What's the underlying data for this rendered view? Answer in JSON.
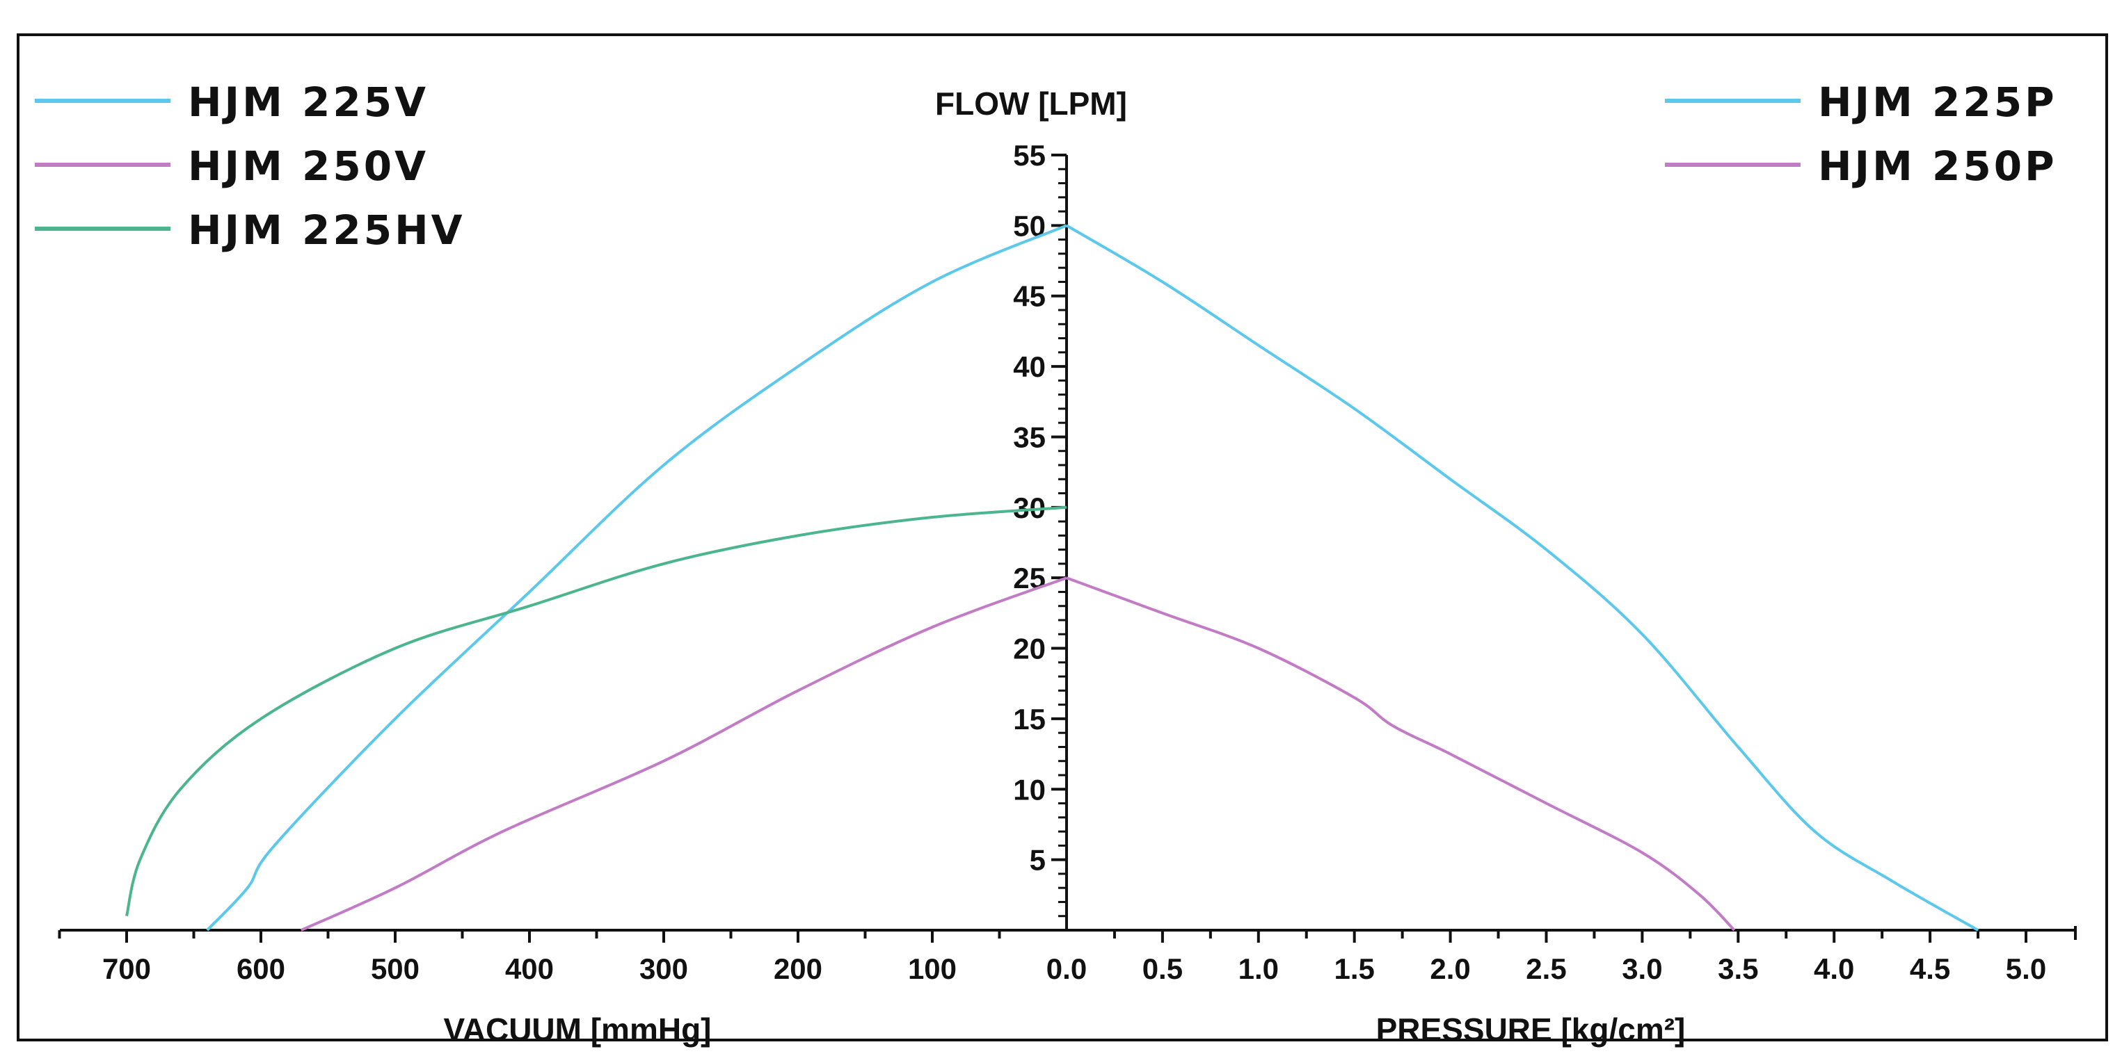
{
  "chart_data": {
    "type": "line",
    "y_axis_title": "FLOW [LPM]",
    "left_x_axis_title": "VACUUM [mmHg]",
    "right_x_axis_title": "PRESSURE   [kg/cm²]",
    "ylim": [
      0,
      55
    ],
    "left_xlim": [
      750,
      0
    ],
    "right_xlim": [
      0,
      5.2
    ],
    "y_ticks": [
      "5",
      "10",
      "15",
      "20",
      "25",
      "30",
      "35",
      "40",
      "45",
      "50",
      "55"
    ],
    "left_x_ticks": [
      "700",
      "600",
      "500",
      "400",
      "300",
      "200",
      "100"
    ],
    "right_x_ticks": [
      "0.0",
      "0.5",
      "1.0",
      "1.5",
      "2.0",
      "2.5",
      "3.0",
      "3.5",
      "4.0",
      "4.5",
      "5.0"
    ],
    "left_legend": [
      {
        "name": "HJM 225V",
        "color": "#5bc8ec"
      },
      {
        "name": "HJM 250V",
        "color": "#c27cc6"
      },
      {
        "name": "HJM 225HV",
        "color": "#4bb58e"
      }
    ],
    "right_legend": [
      {
        "name": "HJM 225P",
        "color": "#5bc8ec"
      },
      {
        "name": "HJM 250P",
        "color": "#c27cc6"
      }
    ],
    "vacuum_series": [
      {
        "name": "HJM 225V",
        "color": "#5bc8ec",
        "points": [
          [
            640,
            0
          ],
          [
            610,
            3
          ],
          [
            590,
            6
          ],
          [
            500,
            15
          ],
          [
            400,
            24
          ],
          [
            300,
            33
          ],
          [
            200,
            40
          ],
          [
            100,
            46
          ],
          [
            0,
            50
          ]
        ]
      },
      {
        "name": "HJM 250V",
        "color": "#c27cc6",
        "points": [
          [
            570,
            0
          ],
          [
            500,
            3
          ],
          [
            420,
            7
          ],
          [
            300,
            12
          ],
          [
            200,
            17
          ],
          [
            100,
            21.5
          ],
          [
            0,
            25
          ]
        ]
      },
      {
        "name": "HJM 225HV",
        "color": "#4bb58e",
        "points": [
          [
            700,
            1
          ],
          [
            690,
            5
          ],
          [
            660,
            10
          ],
          [
            600,
            15
          ],
          [
            500,
            20
          ],
          [
            400,
            23
          ],
          [
            300,
            26
          ],
          [
            200,
            28
          ],
          [
            100,
            29.3
          ],
          [
            0,
            30
          ]
        ]
      }
    ],
    "pressure_series": [
      {
        "name": "HJM 225P",
        "color": "#5bc8ec",
        "points": [
          [
            0,
            50
          ],
          [
            0.5,
            46
          ],
          [
            1.0,
            41.5
          ],
          [
            1.5,
            37
          ],
          [
            2.0,
            32
          ],
          [
            2.5,
            27
          ],
          [
            3.0,
            21
          ],
          [
            3.5,
            13
          ],
          [
            3.9,
            7
          ],
          [
            4.3,
            3.5
          ],
          [
            4.75,
            0
          ]
        ]
      },
      {
        "name": "HJM 250P",
        "color": "#c27cc6",
        "points": [
          [
            0,
            25
          ],
          [
            0.5,
            22.5
          ],
          [
            1.0,
            20
          ],
          [
            1.5,
            16.5
          ],
          [
            1.7,
            14.5
          ],
          [
            2.0,
            12.5
          ],
          [
            2.5,
            9
          ],
          [
            3.0,
            5.5
          ],
          [
            3.3,
            2.5
          ],
          [
            3.48,
            0
          ]
        ]
      }
    ]
  }
}
